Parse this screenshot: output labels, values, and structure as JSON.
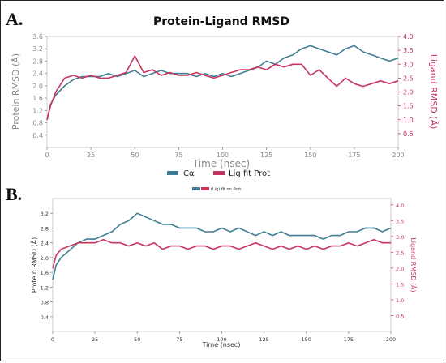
{
  "panels": {
    "a_letter": "A.",
    "b_letter": "B."
  },
  "colors": {
    "protein": "#3f7e95",
    "ligand": "#c9355f",
    "frame": "#cccccc",
    "grid_tick": "#888888"
  },
  "legend": {
    "protein_label": "Cα",
    "ligand_label": "Lig fit Prot",
    "small_label": "(Lig) fit on Prot"
  },
  "chart_data": [
    {
      "type": "line",
      "title": "Protein-Ligand RMSD",
      "xlabel": "Time (nsec)",
      "ylabel": "Protein RMSD (Å)",
      "y2label": "Ligand RMSD (Å)",
      "xlim": [
        0,
        200
      ],
      "ylim": [
        0,
        3.6
      ],
      "y2lim": [
        0,
        4.0
      ],
      "xticks": [
        0,
        25,
        50,
        75,
        100,
        125,
        150,
        175,
        200
      ],
      "yticks": [
        0.4,
        0.8,
        1.2,
        1.6,
        2.0,
        2.4,
        2.8,
        3.2,
        3.6
      ],
      "y2ticks": [
        0.5,
        1.0,
        1.5,
        2.0,
        2.5,
        3.0,
        3.5,
        4.0
      ],
      "legend_position": "bottom-center",
      "series": [
        {
          "name": "Cα",
          "axis": "left",
          "x": [
            0,
            2,
            5,
            10,
            15,
            20,
            25,
            30,
            35,
            40,
            45,
            50,
            55,
            60,
            65,
            70,
            75,
            80,
            85,
            90,
            95,
            100,
            105,
            110,
            115,
            120,
            125,
            130,
            135,
            140,
            145,
            150,
            155,
            160,
            165,
            170,
            175,
            180,
            185,
            190,
            195,
            200
          ],
          "values": [
            0.9,
            1.4,
            1.7,
            2.0,
            2.2,
            2.3,
            2.3,
            2.3,
            2.4,
            2.3,
            2.4,
            2.5,
            2.3,
            2.4,
            2.5,
            2.4,
            2.4,
            2.4,
            2.3,
            2.4,
            2.3,
            2.4,
            2.3,
            2.4,
            2.5,
            2.6,
            2.8,
            2.7,
            2.9,
            3.0,
            3.2,
            3.3,
            3.2,
            3.1,
            3.0,
            3.2,
            3.3,
            3.1,
            3.0,
            2.9,
            2.8,
            2.9
          ]
        },
        {
          "name": "Lig fit Prot",
          "axis": "right",
          "x": [
            0,
            2,
            5,
            10,
            15,
            20,
            25,
            30,
            35,
            40,
            45,
            50,
            55,
            60,
            65,
            70,
            75,
            80,
            85,
            90,
            95,
            100,
            105,
            110,
            115,
            120,
            125,
            130,
            135,
            140,
            145,
            150,
            155,
            160,
            165,
            170,
            175,
            180,
            185,
            190,
            195,
            200
          ],
          "values": [
            1.0,
            1.5,
            2.0,
            2.5,
            2.6,
            2.5,
            2.6,
            2.5,
            2.5,
            2.6,
            2.7,
            3.3,
            2.7,
            2.8,
            2.6,
            2.7,
            2.6,
            2.6,
            2.7,
            2.6,
            2.5,
            2.6,
            2.7,
            2.8,
            2.8,
            2.9,
            2.8,
            3.0,
            2.9,
            3.0,
            3.0,
            2.6,
            2.8,
            2.5,
            2.2,
            2.5,
            2.3,
            2.2,
            2.3,
            2.4,
            2.3,
            2.4
          ]
        }
      ]
    },
    {
      "type": "line",
      "title": "",
      "xlabel": "Time (nsec)",
      "ylabel": "Protein RMSD (Å)",
      "y2label": "Ligand RMSD (Å)",
      "xlim": [
        0,
        200
      ],
      "ylim": [
        0,
        3.6
      ],
      "y2lim": [
        0,
        4.2
      ],
      "xticks": [
        0,
        25,
        50,
        75,
        100,
        125,
        150,
        175,
        200
      ],
      "yticks": [
        0.4,
        0.8,
        1.2,
        1.6,
        2.0,
        2.4,
        2.8,
        3.2
      ],
      "y2ticks": [
        0.5,
        1.0,
        1.5,
        2.0,
        2.5,
        3.0,
        3.5,
        4.0
      ],
      "legend_position": "top-center",
      "series": [
        {
          "name": "(Lig) fit on Prot",
          "axis": "left",
          "x": [
            0,
            2,
            5,
            10,
            15,
            20,
            25,
            30,
            35,
            40,
            45,
            50,
            55,
            60,
            65,
            70,
            75,
            80,
            85,
            90,
            95,
            100,
            105,
            110,
            115,
            120,
            125,
            130,
            135,
            140,
            145,
            150,
            155,
            160,
            165,
            170,
            175,
            180,
            185,
            190,
            195,
            200
          ],
          "values": [
            1.4,
            1.8,
            2.0,
            2.2,
            2.4,
            2.5,
            2.5,
            2.6,
            2.7,
            2.9,
            3.0,
            3.2,
            3.1,
            3.0,
            2.9,
            2.9,
            2.8,
            2.8,
            2.8,
            2.7,
            2.7,
            2.8,
            2.7,
            2.8,
            2.7,
            2.6,
            2.7,
            2.6,
            2.7,
            2.6,
            2.6,
            2.6,
            2.6,
            2.5,
            2.6,
            2.6,
            2.7,
            2.7,
            2.8,
            2.8,
            2.7,
            2.8
          ]
        },
        {
          "name": "",
          "axis": "right",
          "x": [
            0,
            2,
            5,
            10,
            15,
            20,
            25,
            30,
            35,
            40,
            45,
            50,
            55,
            60,
            65,
            70,
            75,
            80,
            85,
            90,
            95,
            100,
            105,
            110,
            115,
            120,
            125,
            130,
            135,
            140,
            145,
            150,
            155,
            160,
            165,
            170,
            175,
            180,
            185,
            190,
            195,
            200
          ],
          "values": [
            2.0,
            2.4,
            2.6,
            2.7,
            2.8,
            2.8,
            2.8,
            2.9,
            2.8,
            2.8,
            2.7,
            2.8,
            2.7,
            2.8,
            2.6,
            2.7,
            2.7,
            2.6,
            2.7,
            2.7,
            2.6,
            2.7,
            2.7,
            2.6,
            2.7,
            2.8,
            2.7,
            2.6,
            2.7,
            2.6,
            2.7,
            2.6,
            2.7,
            2.6,
            2.7,
            2.7,
            2.8,
            2.7,
            2.8,
            2.9,
            2.8,
            2.8
          ]
        }
      ]
    }
  ]
}
